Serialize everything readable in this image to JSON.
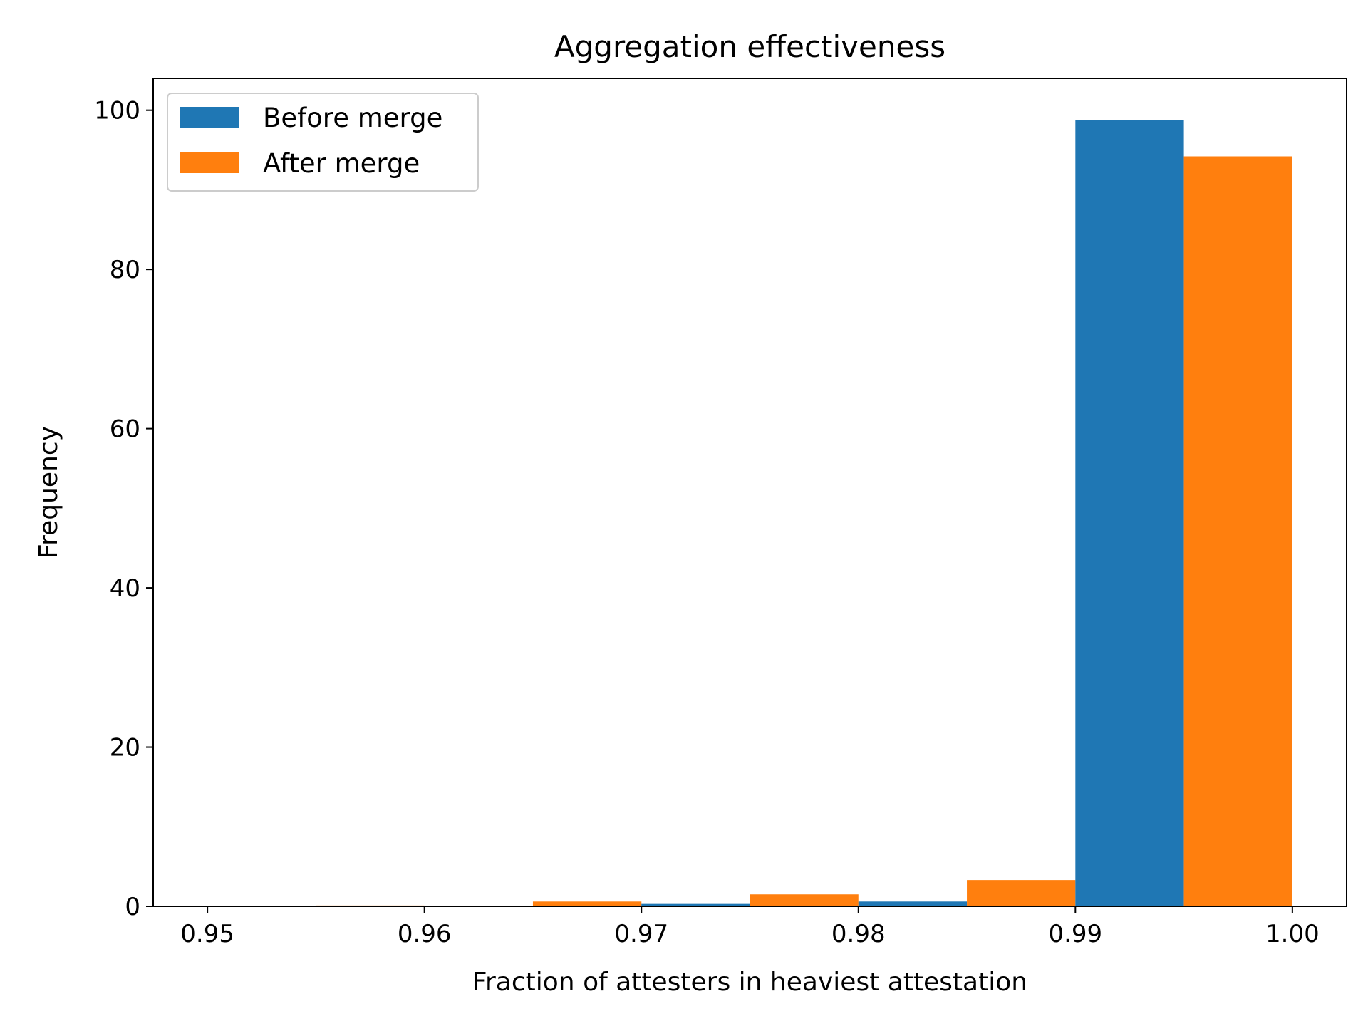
{
  "chart_data": {
    "type": "bar",
    "title": "Aggregation effectiveness",
    "xlabel": "Fraction of attesters in heaviest attestation",
    "ylabel": "Frequency",
    "xlim": [
      0.9475,
      1.0025
    ],
    "ylim": [
      0,
      104
    ],
    "xticks": [
      {
        "value": 0.95,
        "label": "0.95"
      },
      {
        "value": 0.96,
        "label": "0.96"
      },
      {
        "value": 0.97,
        "label": "0.97"
      },
      {
        "value": 0.98,
        "label": "0.98"
      },
      {
        "value": 0.99,
        "label": "0.99"
      },
      {
        "value": 1.0,
        "label": "1.00"
      }
    ],
    "yticks": [
      {
        "value": 0,
        "label": "0"
      },
      {
        "value": 20,
        "label": "20"
      },
      {
        "value": 40,
        "label": "40"
      },
      {
        "value": 60,
        "label": "60"
      },
      {
        "value": 80,
        "label": "80"
      },
      {
        "value": 100,
        "label": "100"
      }
    ],
    "bin_edges": [
      0.95,
      0.96,
      0.97,
      0.98,
      0.99,
      1.0
    ],
    "series": [
      {
        "name": "Before merge",
        "color": "#1f77b4",
        "values": [
          0,
          0,
          0.3,
          0.6,
          98.8
        ]
      },
      {
        "name": "After merge",
        "color": "#ff7f0e",
        "values": [
          0.1,
          0.6,
          1.5,
          3.3,
          94.2
        ]
      }
    ],
    "legend_position": "top-left",
    "grid": false
  }
}
